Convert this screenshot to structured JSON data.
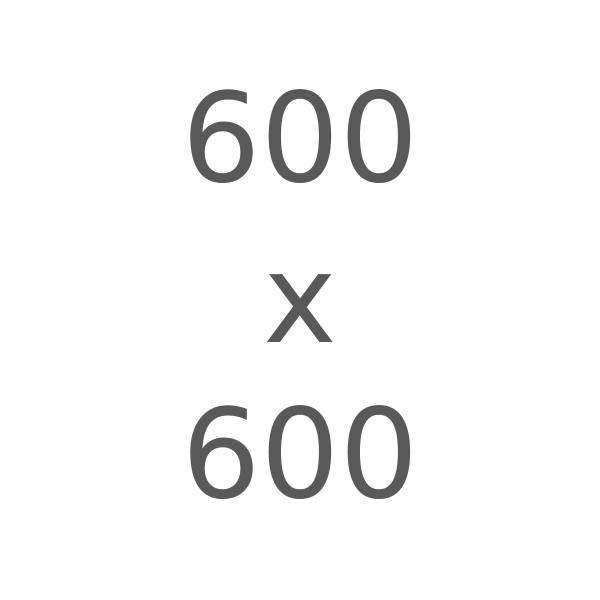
{
  "placeholder": {
    "width_text": "600",
    "separator": "x",
    "height_text": "600"
  }
}
